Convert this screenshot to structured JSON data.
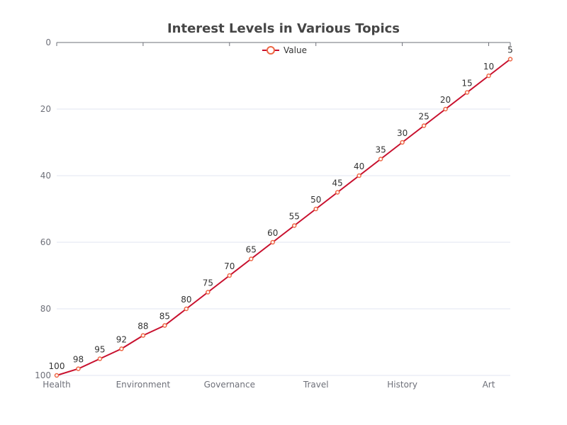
{
  "chart_data": {
    "type": "line",
    "title": "Interest Levels in Various Topics",
    "categories": [
      "Health",
      "",
      "",
      "",
      "Environment",
      "",
      "",
      "",
      "Governance",
      "",
      "",
      "",
      "Travel",
      "",
      "",
      "",
      "History",
      "",
      "",
      "",
      "Art",
      ""
    ],
    "x_tick_labels": [
      "Health",
      "Environment",
      "Governance",
      "Travel",
      "History",
      "Art"
    ],
    "series": [
      {
        "name": "Value",
        "values": [
          100,
          98,
          95,
          92,
          88,
          85,
          80,
          75,
          70,
          65,
          60,
          55,
          50,
          45,
          40,
          35,
          30,
          25,
          20,
          15,
          10,
          5
        ]
      }
    ],
    "y_ticks": [
      0,
      20,
      40,
      60,
      80,
      100
    ],
    "ylim": [
      0,
      100
    ],
    "y_inverted": true,
    "grid": true,
    "legend_position": "top",
    "colors": {
      "line": "#c8102e",
      "marker": "#ee6644"
    }
  }
}
